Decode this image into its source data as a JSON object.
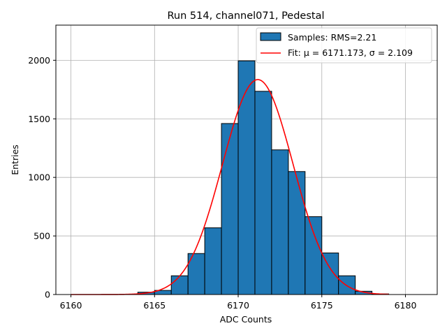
{
  "chart_data": {
    "type": "bar",
    "title": "Run 514, channel071, Pedestal",
    "xlabel": "ADC Counts",
    "ylabel": "Entries",
    "xlim": [
      6159.1,
      6181.9
    ],
    "ylim": [
      0,
      2300
    ],
    "grid": true,
    "x_ticks": [
      6160,
      6165,
      6170,
      6175,
      6180
    ],
    "y_ticks": [
      0,
      500,
      1000,
      1500,
      2000
    ],
    "bin_width": 1,
    "bins": [
      {
        "left": 6164,
        "value": 20
      },
      {
        "left": 6165,
        "value": 35
      },
      {
        "left": 6166,
        "value": 160
      },
      {
        "left": 6167,
        "value": 350
      },
      {
        "left": 6168,
        "value": 570
      },
      {
        "left": 6169,
        "value": 1460
      },
      {
        "left": 6170,
        "value": 1995
      },
      {
        "left": 6171,
        "value": 1735
      },
      {
        "left": 6172,
        "value": 1235
      },
      {
        "left": 6173,
        "value": 1050
      },
      {
        "left": 6174,
        "value": 665
      },
      {
        "left": 6175,
        "value": 355
      },
      {
        "left": 6176,
        "value": 160
      },
      {
        "left": 6177,
        "value": 28
      },
      {
        "left": 6178,
        "value": 5
      }
    ],
    "fit": {
      "mu": 6171.173,
      "sigma": 2.109,
      "amplitude": 1835,
      "x_range": [
        6160,
        6179
      ]
    },
    "legend": {
      "position": "top-right",
      "entries": [
        {
          "label": "Samples: RMS=2.21",
          "kind": "patch",
          "color": "#1f77b4"
        },
        {
          "label": "Fit: μ = 6171.173, σ = 2.109",
          "kind": "line",
          "color": "#e41a1c"
        }
      ]
    },
    "colors": {
      "bar": "#1f77b4",
      "edge": "#000000",
      "fit": "#ff0000",
      "grid": "#b0b0b0"
    }
  }
}
